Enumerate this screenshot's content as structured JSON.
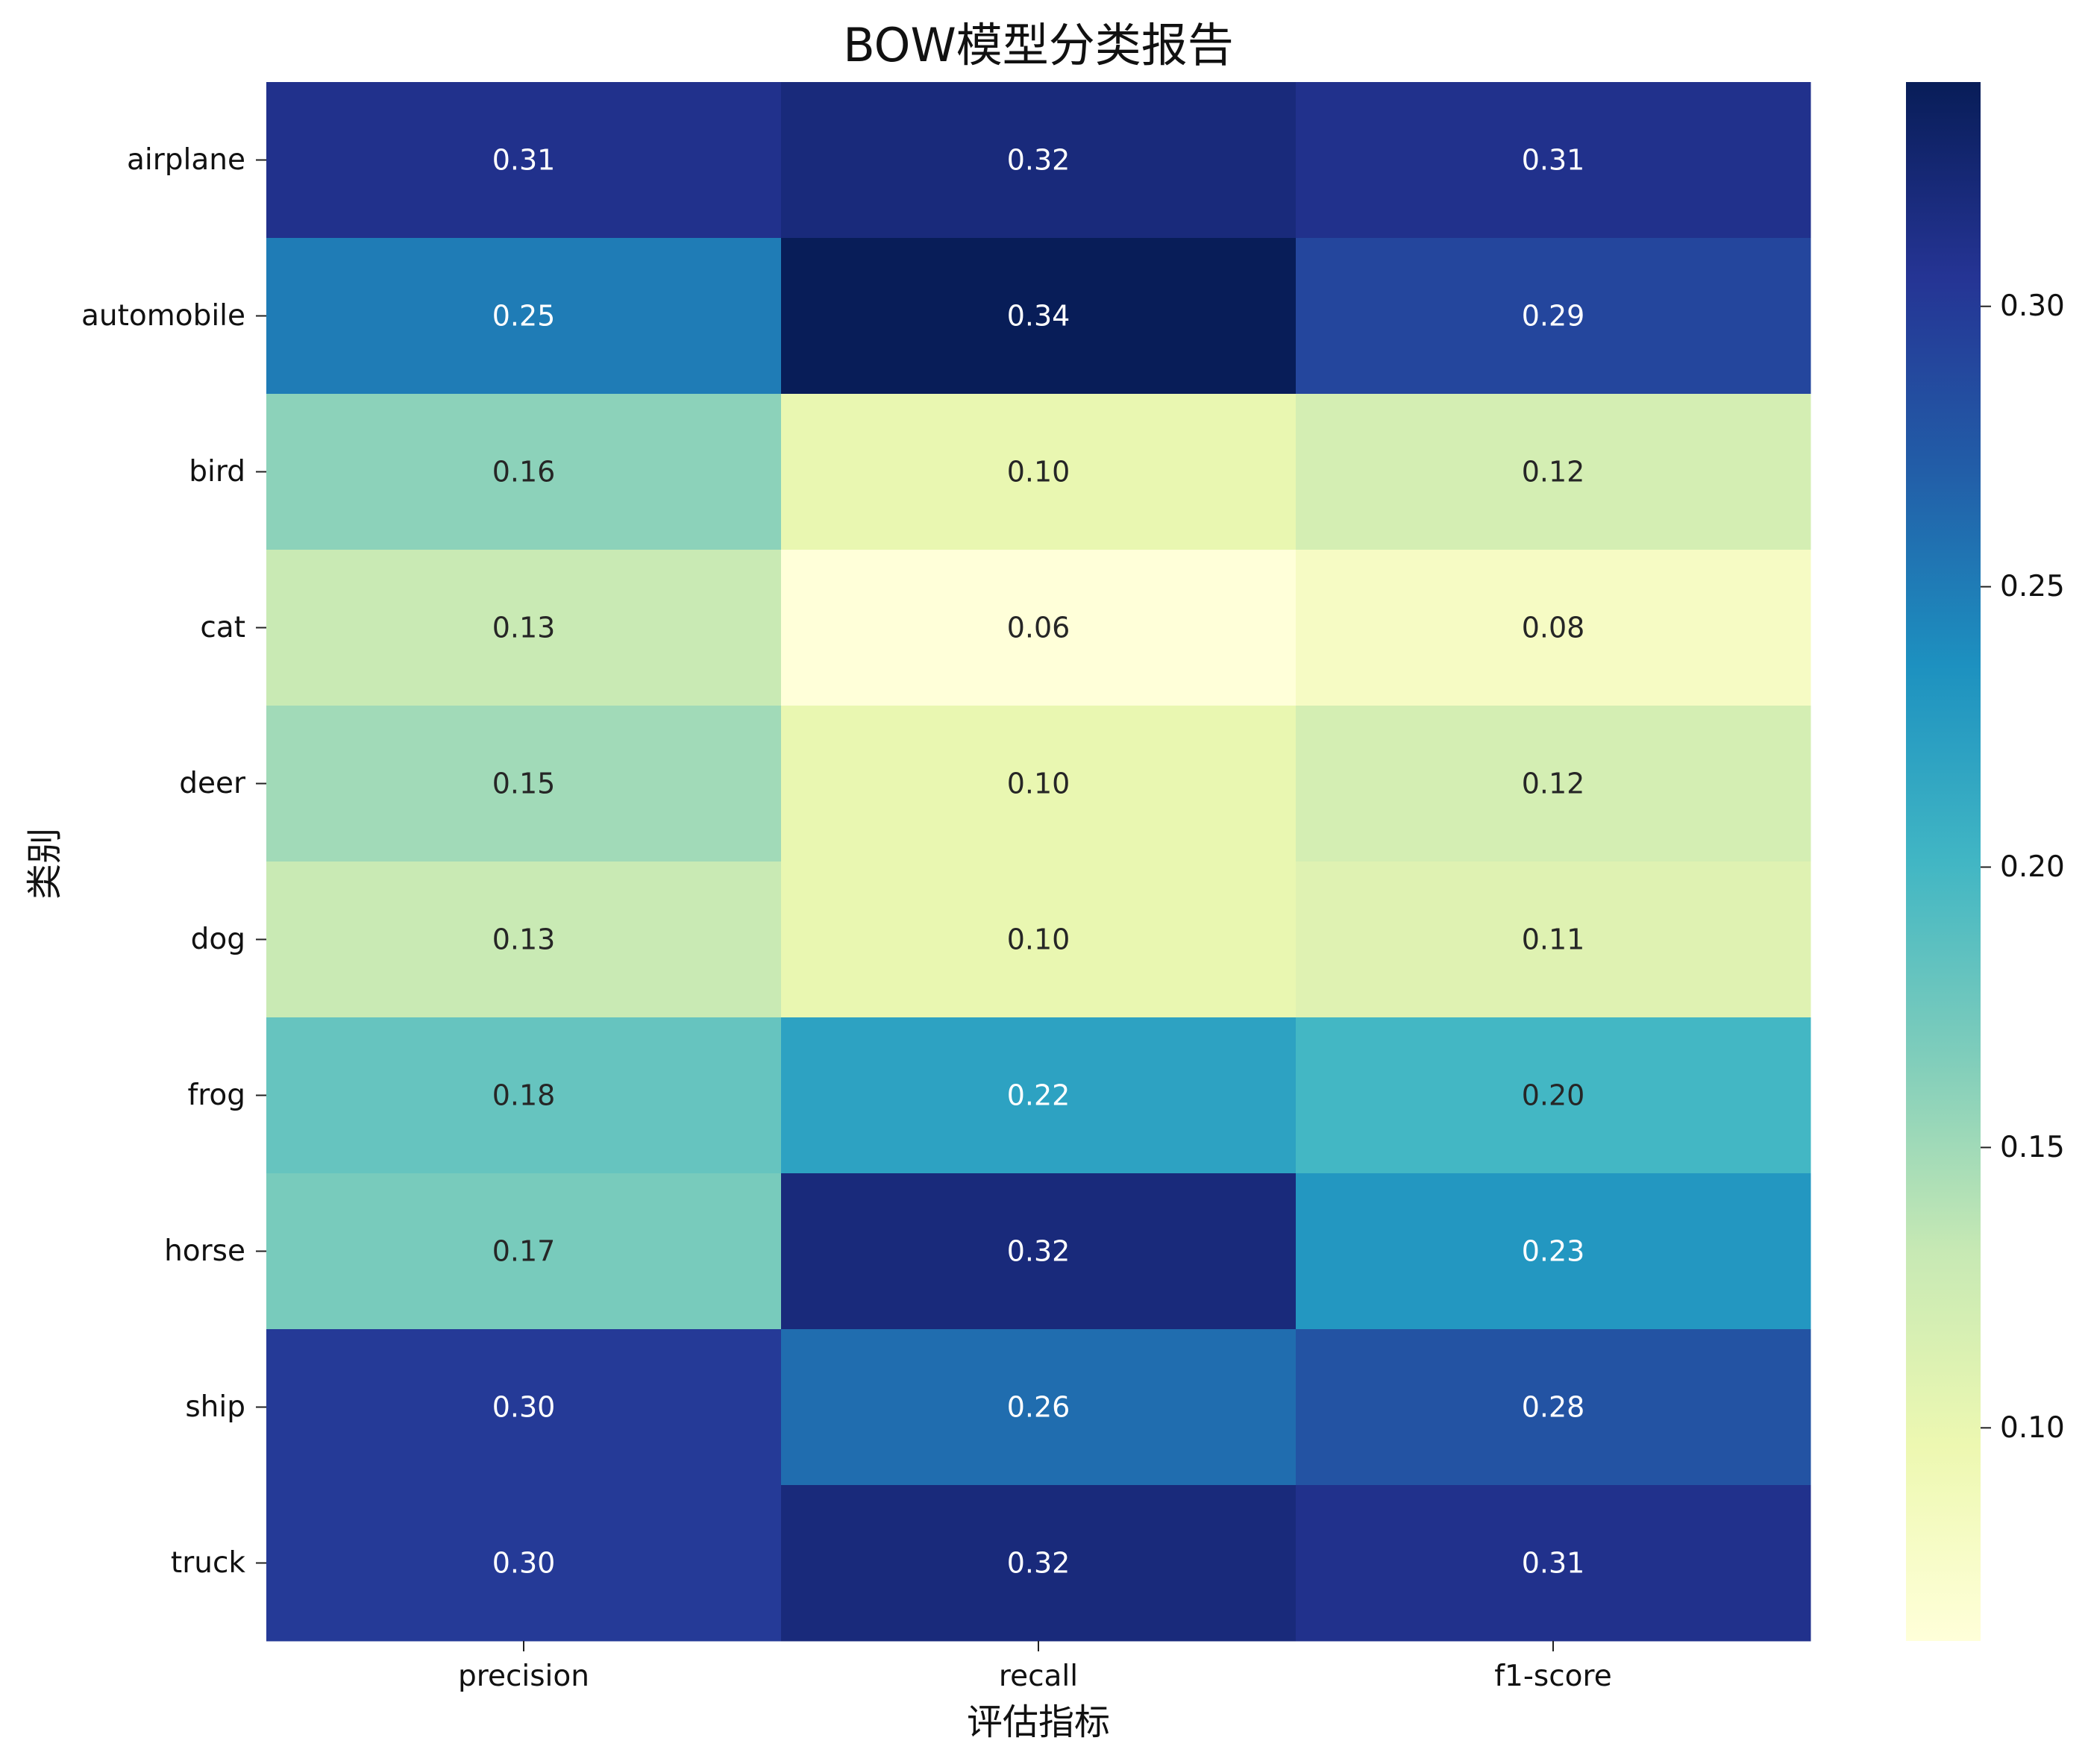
{
  "chart_data": {
    "type": "heatmap",
    "title": "BOW模型分类报告",
    "xlabel": "评估指标",
    "ylabel": "类别",
    "columns": [
      "precision",
      "recall",
      "f1-score"
    ],
    "rows": [
      "airplane",
      "automobile",
      "bird",
      "cat",
      "deer",
      "dog",
      "frog",
      "horse",
      "ship",
      "truck"
    ],
    "values": [
      [
        0.31,
        0.32,
        0.31
      ],
      [
        0.25,
        0.34,
        0.29
      ],
      [
        0.16,
        0.1,
        0.12
      ],
      [
        0.13,
        0.06,
        0.08
      ],
      [
        0.15,
        0.1,
        0.12
      ],
      [
        0.13,
        0.1,
        0.11
      ],
      [
        0.18,
        0.22,
        0.2
      ],
      [
        0.17,
        0.32,
        0.23
      ],
      [
        0.3,
        0.26,
        0.28
      ],
      [
        0.3,
        0.32,
        0.31
      ]
    ],
    "value_labels": [
      [
        "0.31",
        "0.32",
        "0.31"
      ],
      [
        "0.25",
        "0.34",
        "0.29"
      ],
      [
        "0.16",
        "0.10",
        "0.12"
      ],
      [
        "0.13",
        "0.06",
        "0.08"
      ],
      [
        "0.15",
        "0.10",
        "0.12"
      ],
      [
        "0.13",
        "0.10",
        "0.11"
      ],
      [
        "0.18",
        "0.22",
        "0.20"
      ],
      [
        "0.17",
        "0.32",
        "0.23"
      ],
      [
        "0.30",
        "0.26",
        "0.28"
      ],
      [
        "0.30",
        "0.32",
        "0.31"
      ]
    ],
    "colormap": "YlGnBu",
    "color_range": [
      0.062,
      0.34
    ],
    "colorbar_ticks": [
      "0.10",
      "0.15",
      "0.20",
      "0.25",
      "0.30"
    ],
    "colorbar_tick_values": [
      0.1,
      0.15,
      0.2,
      0.25,
      0.3
    ]
  }
}
